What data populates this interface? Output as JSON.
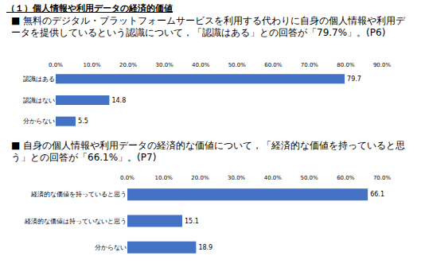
{
  "heading": "（１）個人情報や利用データの経済的価値",
  "chart_data": [
    {
      "type": "bar",
      "orientation": "horizontal",
      "title": "■ 無料のデジタル・プラットフォームサービスを利用する代わりに自身の個人情報や利用データを提供しているという認識について，「認識はある」との回答が「79.7%」。(P6)",
      "categories": [
        "認識はある",
        "認識はない",
        "分からない"
      ],
      "values": [
        79.7,
        14.8,
        5.5
      ],
      "color": "#4472c4",
      "xlim": [
        0,
        90
      ],
      "xticks": [
        {
          "value": 0,
          "label": "0.0%"
        },
        {
          "value": 10,
          "label": "10.0%"
        },
        {
          "value": 20,
          "label": "20.0%"
        },
        {
          "value": 30,
          "label": "30.0%"
        },
        {
          "value": 40,
          "label": "40.0%"
        },
        {
          "value": 50,
          "label": "50.0%"
        },
        {
          "value": 60,
          "label": "60.0%"
        },
        {
          "value": 70,
          "label": "70.0%"
        },
        {
          "value": 80,
          "label": "80.0%"
        },
        {
          "value": 90,
          "label": "90.0%"
        }
      ],
      "grid": false,
      "data_labels": true
    },
    {
      "type": "bar",
      "orientation": "horizontal",
      "title": "■ 自身の個人情報や利用データの経済的な価値について，「経済的な価値を持っていると思う」との回答が「66.1%」。(P7)",
      "categories": [
        "経済的な価値を持っていると思う",
        "経済的な価値は持っていないと思う",
        "分からない"
      ],
      "values": [
        66.1,
        15.1,
        18.9
      ],
      "color": "#4472c4",
      "xlim": [
        0,
        70
      ],
      "xticks": [
        {
          "value": 0,
          "label": "0.0%"
        },
        {
          "value": 10,
          "label": "10.0%"
        },
        {
          "value": 20,
          "label": "20.0%"
        },
        {
          "value": 30,
          "label": "30.0%"
        },
        {
          "value": 40,
          "label": "40.0%"
        },
        {
          "value": 50,
          "label": "50.0%"
        },
        {
          "value": 60,
          "label": "60.0%"
        },
        {
          "value": 70,
          "label": "70.0%"
        }
      ],
      "grid": false,
      "data_labels": true
    }
  ]
}
